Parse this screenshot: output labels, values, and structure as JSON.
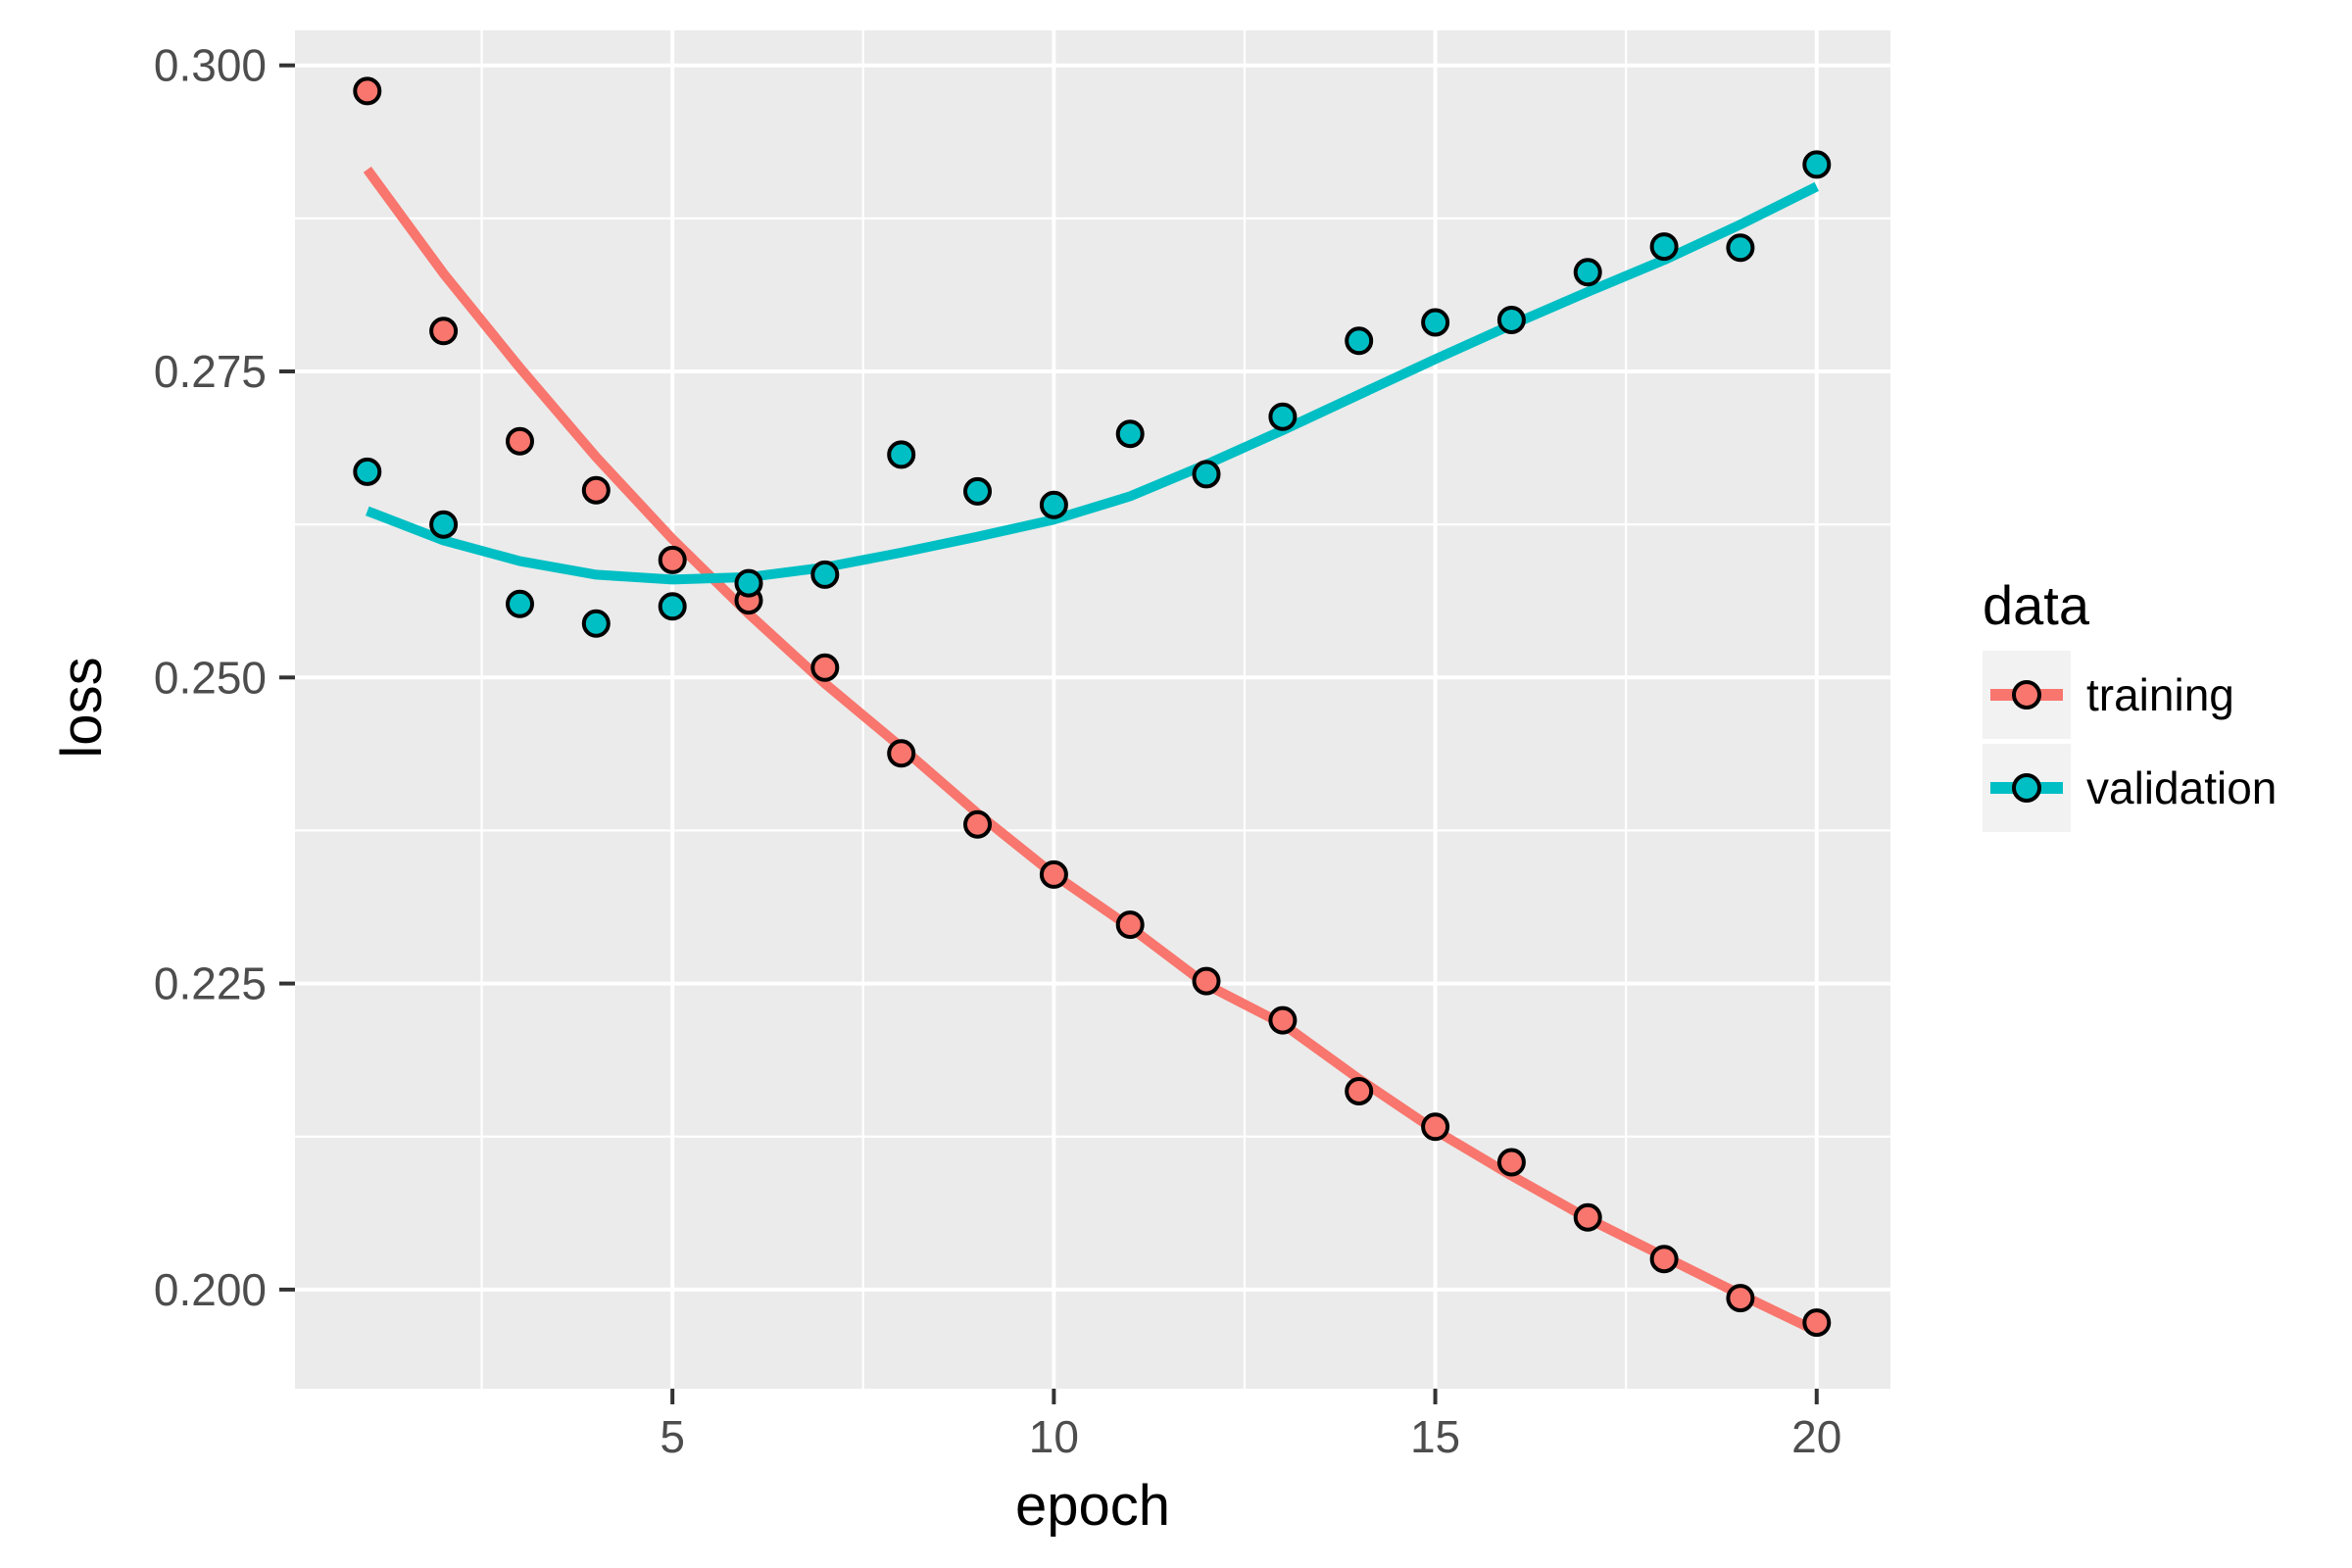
{
  "figure": {
    "xlabel": "epoch",
    "ylabel": "loss",
    "legend": {
      "title": "data",
      "items": [
        {
          "label": "training",
          "color": "#F8766D"
        },
        {
          "label": "validation",
          "color": "#00BFC4"
        }
      ]
    }
  },
  "chart_data": {
    "type": "scatter",
    "subtype": "scatter points with loess smooth lines (ggplot2 style)",
    "title": "",
    "xlabel": "epoch",
    "ylabel": "loss",
    "legend_title": "data",
    "legend_position": "right-center",
    "grid": {
      "major": true,
      "minor": true,
      "color": "white on grey panel"
    },
    "x": [
      1,
      2,
      3,
      4,
      5,
      6,
      7,
      8,
      9,
      10,
      11,
      12,
      13,
      14,
      15,
      16,
      17,
      18,
      19,
      20
    ],
    "x_ticks": [
      5,
      10,
      15,
      20
    ],
    "x_minor_breaks": [
      2.5,
      7.5,
      12.5,
      17.5
    ],
    "xlim": [
      0.05,
      20.98
    ],
    "y_ticks": [
      0.3,
      0.275,
      0.25,
      0.225,
      0.2
    ],
    "y_tick_labels": [
      "0.300",
      "0.275",
      "0.250",
      "0.225",
      "0.200"
    ],
    "y_minor_breaks": [
      0.2875,
      0.2625,
      0.2375,
      0.2125
    ],
    "ylim": [
      0.192,
      0.303
    ],
    "series": [
      {
        "name": "training",
        "color": "#F8766D",
        "points": [
          0.2979,
          0.2783,
          0.2693,
          0.2653,
          0.2596,
          0.2563,
          0.2508,
          0.2438,
          0.238,
          0.2339,
          0.2298,
          0.2252,
          0.222,
          0.2162,
          0.2133,
          0.2104,
          0.2059,
          0.2025,
          0.1993,
          0.1973
        ],
        "smooth": [
          0.2915,
          0.283,
          0.2753,
          0.268,
          0.2613,
          0.2552,
          0.2495,
          0.2443,
          0.2389,
          0.2339,
          0.2296,
          0.2249,
          0.2217,
          0.2172,
          0.213,
          0.2093,
          0.2058,
          0.2027,
          0.1996,
          0.1966
        ]
      },
      {
        "name": "validation",
        "color": "#00BFC4",
        "points": [
          0.2668,
          0.2625,
          0.256,
          0.2544,
          0.2558,
          0.2577,
          0.2584,
          0.2682,
          0.2652,
          0.2641,
          0.2699,
          0.2666,
          0.2713,
          0.2775,
          0.279,
          0.2792,
          0.2831,
          0.2852,
          0.2851,
          0.2919
        ],
        "smooth": [
          0.2636,
          0.2612,
          0.2595,
          0.2584,
          0.258,
          0.2582,
          0.259,
          0.2602,
          0.2615,
          0.2629,
          0.2648,
          0.2674,
          0.2702,
          0.2731,
          0.276,
          0.2788,
          0.2815,
          0.2841,
          0.287,
          0.2901
        ]
      }
    ],
    "point_style": {
      "fill_radius": 12.5,
      "stroke": "#000000",
      "stroke_width": 4
    },
    "smooth_line_width": 10
  },
  "theme": {
    "page_bg": "#FFFFFF",
    "panel_bg": "#EBEBEB",
    "grid_color": "#FFFFFF",
    "axis_text_color": "#4D4D4D",
    "tick_color": "#333333",
    "title_color": "#000000",
    "legend_key_bg": "#F2F2F2"
  }
}
